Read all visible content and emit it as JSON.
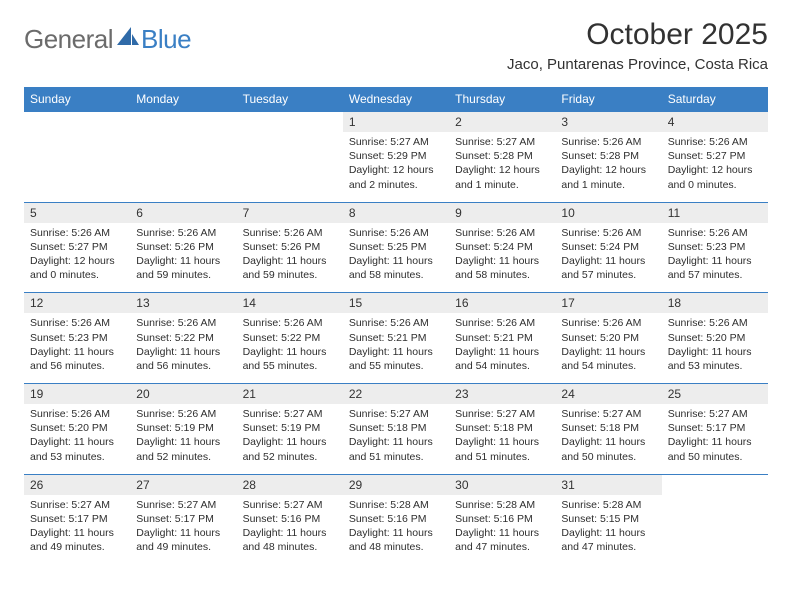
{
  "logo": {
    "general": "General",
    "blue": "Blue"
  },
  "title": "October 2025",
  "subtitle": "Jaco, Puntarenas Province, Costa Rica",
  "colors": {
    "header_bg": "#3a7fc4",
    "header_text": "#ffffff",
    "daynum_bg": "#ededed",
    "body_bg": "#ffffff",
    "text": "#333333",
    "logo_gray": "#6b6b6b",
    "logo_blue": "#3a7fc4"
  },
  "typography": {
    "title_fontsize": 30,
    "subtitle_fontsize": 15,
    "header_fontsize": 12,
    "daynum_fontsize": 12,
    "detail_fontsize": 10.5
  },
  "day_names": [
    "Sunday",
    "Monday",
    "Tuesday",
    "Wednesday",
    "Thursday",
    "Friday",
    "Saturday"
  ],
  "weeks": [
    [
      {
        "num": "",
        "sunrise": "",
        "sunset": "",
        "daylight": ""
      },
      {
        "num": "",
        "sunrise": "",
        "sunset": "",
        "daylight": ""
      },
      {
        "num": "",
        "sunrise": "",
        "sunset": "",
        "daylight": ""
      },
      {
        "num": "1",
        "sunrise": "Sunrise: 5:27 AM",
        "sunset": "Sunset: 5:29 PM",
        "daylight": "Daylight: 12 hours and 2 minutes."
      },
      {
        "num": "2",
        "sunrise": "Sunrise: 5:27 AM",
        "sunset": "Sunset: 5:28 PM",
        "daylight": "Daylight: 12 hours and 1 minute."
      },
      {
        "num": "3",
        "sunrise": "Sunrise: 5:26 AM",
        "sunset": "Sunset: 5:28 PM",
        "daylight": "Daylight: 12 hours and 1 minute."
      },
      {
        "num": "4",
        "sunrise": "Sunrise: 5:26 AM",
        "sunset": "Sunset: 5:27 PM",
        "daylight": "Daylight: 12 hours and 0 minutes."
      }
    ],
    [
      {
        "num": "5",
        "sunrise": "Sunrise: 5:26 AM",
        "sunset": "Sunset: 5:27 PM",
        "daylight": "Daylight: 12 hours and 0 minutes."
      },
      {
        "num": "6",
        "sunrise": "Sunrise: 5:26 AM",
        "sunset": "Sunset: 5:26 PM",
        "daylight": "Daylight: 11 hours and 59 minutes."
      },
      {
        "num": "7",
        "sunrise": "Sunrise: 5:26 AM",
        "sunset": "Sunset: 5:26 PM",
        "daylight": "Daylight: 11 hours and 59 minutes."
      },
      {
        "num": "8",
        "sunrise": "Sunrise: 5:26 AM",
        "sunset": "Sunset: 5:25 PM",
        "daylight": "Daylight: 11 hours and 58 minutes."
      },
      {
        "num": "9",
        "sunrise": "Sunrise: 5:26 AM",
        "sunset": "Sunset: 5:24 PM",
        "daylight": "Daylight: 11 hours and 58 minutes."
      },
      {
        "num": "10",
        "sunrise": "Sunrise: 5:26 AM",
        "sunset": "Sunset: 5:24 PM",
        "daylight": "Daylight: 11 hours and 57 minutes."
      },
      {
        "num": "11",
        "sunrise": "Sunrise: 5:26 AM",
        "sunset": "Sunset: 5:23 PM",
        "daylight": "Daylight: 11 hours and 57 minutes."
      }
    ],
    [
      {
        "num": "12",
        "sunrise": "Sunrise: 5:26 AM",
        "sunset": "Sunset: 5:23 PM",
        "daylight": "Daylight: 11 hours and 56 minutes."
      },
      {
        "num": "13",
        "sunrise": "Sunrise: 5:26 AM",
        "sunset": "Sunset: 5:22 PM",
        "daylight": "Daylight: 11 hours and 56 minutes."
      },
      {
        "num": "14",
        "sunrise": "Sunrise: 5:26 AM",
        "sunset": "Sunset: 5:22 PM",
        "daylight": "Daylight: 11 hours and 55 minutes."
      },
      {
        "num": "15",
        "sunrise": "Sunrise: 5:26 AM",
        "sunset": "Sunset: 5:21 PM",
        "daylight": "Daylight: 11 hours and 55 minutes."
      },
      {
        "num": "16",
        "sunrise": "Sunrise: 5:26 AM",
        "sunset": "Sunset: 5:21 PM",
        "daylight": "Daylight: 11 hours and 54 minutes."
      },
      {
        "num": "17",
        "sunrise": "Sunrise: 5:26 AM",
        "sunset": "Sunset: 5:20 PM",
        "daylight": "Daylight: 11 hours and 54 minutes."
      },
      {
        "num": "18",
        "sunrise": "Sunrise: 5:26 AM",
        "sunset": "Sunset: 5:20 PM",
        "daylight": "Daylight: 11 hours and 53 minutes."
      }
    ],
    [
      {
        "num": "19",
        "sunrise": "Sunrise: 5:26 AM",
        "sunset": "Sunset: 5:20 PM",
        "daylight": "Daylight: 11 hours and 53 minutes."
      },
      {
        "num": "20",
        "sunrise": "Sunrise: 5:26 AM",
        "sunset": "Sunset: 5:19 PM",
        "daylight": "Daylight: 11 hours and 52 minutes."
      },
      {
        "num": "21",
        "sunrise": "Sunrise: 5:27 AM",
        "sunset": "Sunset: 5:19 PM",
        "daylight": "Daylight: 11 hours and 52 minutes."
      },
      {
        "num": "22",
        "sunrise": "Sunrise: 5:27 AM",
        "sunset": "Sunset: 5:18 PM",
        "daylight": "Daylight: 11 hours and 51 minutes."
      },
      {
        "num": "23",
        "sunrise": "Sunrise: 5:27 AM",
        "sunset": "Sunset: 5:18 PM",
        "daylight": "Daylight: 11 hours and 51 minutes."
      },
      {
        "num": "24",
        "sunrise": "Sunrise: 5:27 AM",
        "sunset": "Sunset: 5:18 PM",
        "daylight": "Daylight: 11 hours and 50 minutes."
      },
      {
        "num": "25",
        "sunrise": "Sunrise: 5:27 AM",
        "sunset": "Sunset: 5:17 PM",
        "daylight": "Daylight: 11 hours and 50 minutes."
      }
    ],
    [
      {
        "num": "26",
        "sunrise": "Sunrise: 5:27 AM",
        "sunset": "Sunset: 5:17 PM",
        "daylight": "Daylight: 11 hours and 49 minutes."
      },
      {
        "num": "27",
        "sunrise": "Sunrise: 5:27 AM",
        "sunset": "Sunset: 5:17 PM",
        "daylight": "Daylight: 11 hours and 49 minutes."
      },
      {
        "num": "28",
        "sunrise": "Sunrise: 5:27 AM",
        "sunset": "Sunset: 5:16 PM",
        "daylight": "Daylight: 11 hours and 48 minutes."
      },
      {
        "num": "29",
        "sunrise": "Sunrise: 5:28 AM",
        "sunset": "Sunset: 5:16 PM",
        "daylight": "Daylight: 11 hours and 48 minutes."
      },
      {
        "num": "30",
        "sunrise": "Sunrise: 5:28 AM",
        "sunset": "Sunset: 5:16 PM",
        "daylight": "Daylight: 11 hours and 47 minutes."
      },
      {
        "num": "31",
        "sunrise": "Sunrise: 5:28 AM",
        "sunset": "Sunset: 5:15 PM",
        "daylight": "Daylight: 11 hours and 47 minutes."
      },
      {
        "num": "",
        "sunrise": "",
        "sunset": "",
        "daylight": ""
      }
    ]
  ]
}
